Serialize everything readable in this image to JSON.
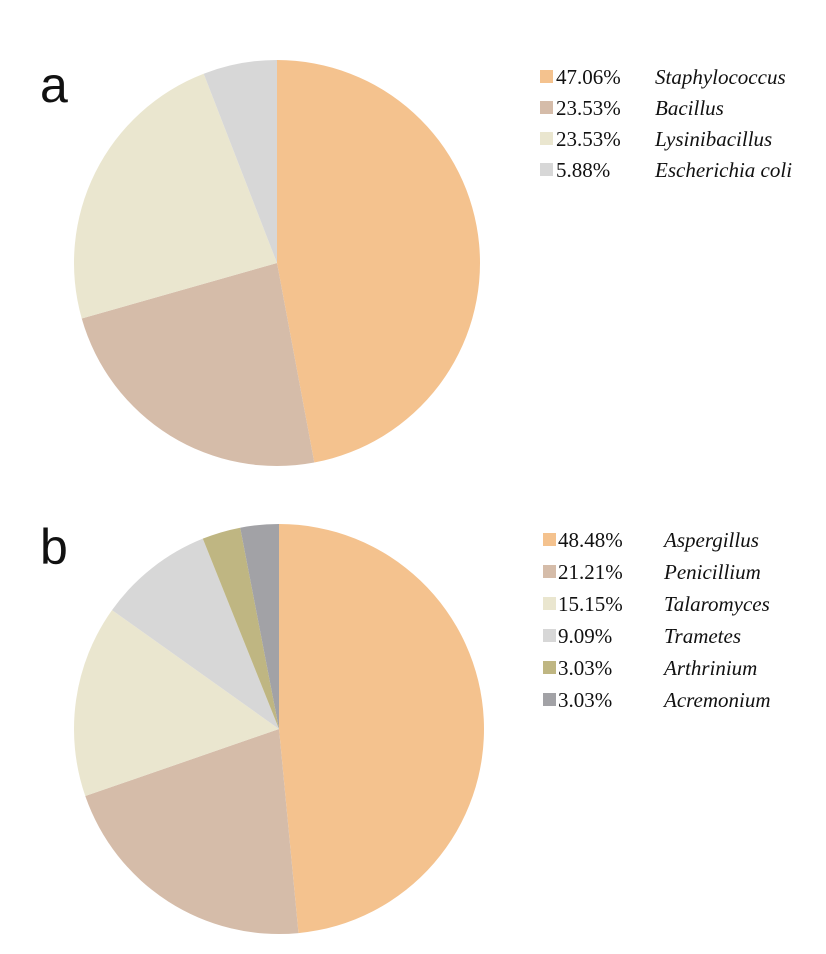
{
  "chart_data": [
    {
      "type": "pie",
      "panel_label": "a",
      "legend_position": "right",
      "slices": [
        {
          "label": "Staphylococcus",
          "percent_label": "47.06%",
          "value": 47.06,
          "color": "#F4C28E"
        },
        {
          "label": "Bacillus",
          "percent_label": "23.53%",
          "value": 23.53,
          "color": "#D5BCA9"
        },
        {
          "label": "Lysinibacillus",
          "percent_label": "23.53%",
          "value": 23.53,
          "color": "#EAE6CF"
        },
        {
          "label": "Escherichia coli",
          "percent_label": "5.88%",
          "value": 5.88,
          "color": "#D7D7D7"
        }
      ]
    },
    {
      "type": "pie",
      "panel_label": "b",
      "legend_position": "right",
      "slices": [
        {
          "label": "Aspergillus",
          "percent_label": "48.48%",
          "value": 48.48,
          "color": "#F4C28E"
        },
        {
          "label": "Penicillium",
          "percent_label": "21.21%",
          "value": 21.21,
          "color": "#D5BCA9"
        },
        {
          "label": "Talaromyces",
          "percent_label": "15.15%",
          "value": 15.15,
          "color": "#EAE6CF"
        },
        {
          "label": "Trametes",
          "percent_label": "9.09%",
          "value": 9.09,
          "color": "#D7D7D7"
        },
        {
          "label": "Arthrinium",
          "percent_label": "3.03%",
          "value": 3.03,
          "color": "#BFB682"
        },
        {
          "label": "Acremonium",
          "percent_label": "3.03%",
          "value": 3.03,
          "color": "#A2A2A6"
        }
      ]
    }
  ]
}
